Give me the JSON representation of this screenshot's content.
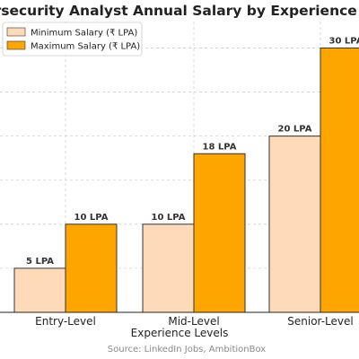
{
  "chart_data": {
    "type": "bar",
    "title": "Cybersecurity Analyst Annual Salary by Experience Level",
    "xlabel": "Experience Levels",
    "ylabel": "",
    "categories": [
      "Entry-Level",
      "Mid-Level",
      "Senior-Level"
    ],
    "series": [
      {
        "name": "Minimum Salary (₹ LPA)",
        "values": [
          5,
          10,
          20
        ],
        "labels": [
          "5 LPA",
          "10 LPA",
          "20 LPA"
        ],
        "color": "#ffdab9"
      },
      {
        "name": "Maximum Salary (₹ LPA)",
        "values": [
          10,
          18,
          30
        ],
        "labels": [
          "10 LPA",
          "18 LPA",
          "30 LPA"
        ],
        "color": "#ffa500"
      }
    ],
    "ylim": [
      0,
      33
    ],
    "grid": true,
    "legend_position": "top-left",
    "source": "Source: LinkedIn Jobs, AmbitionBox"
  }
}
